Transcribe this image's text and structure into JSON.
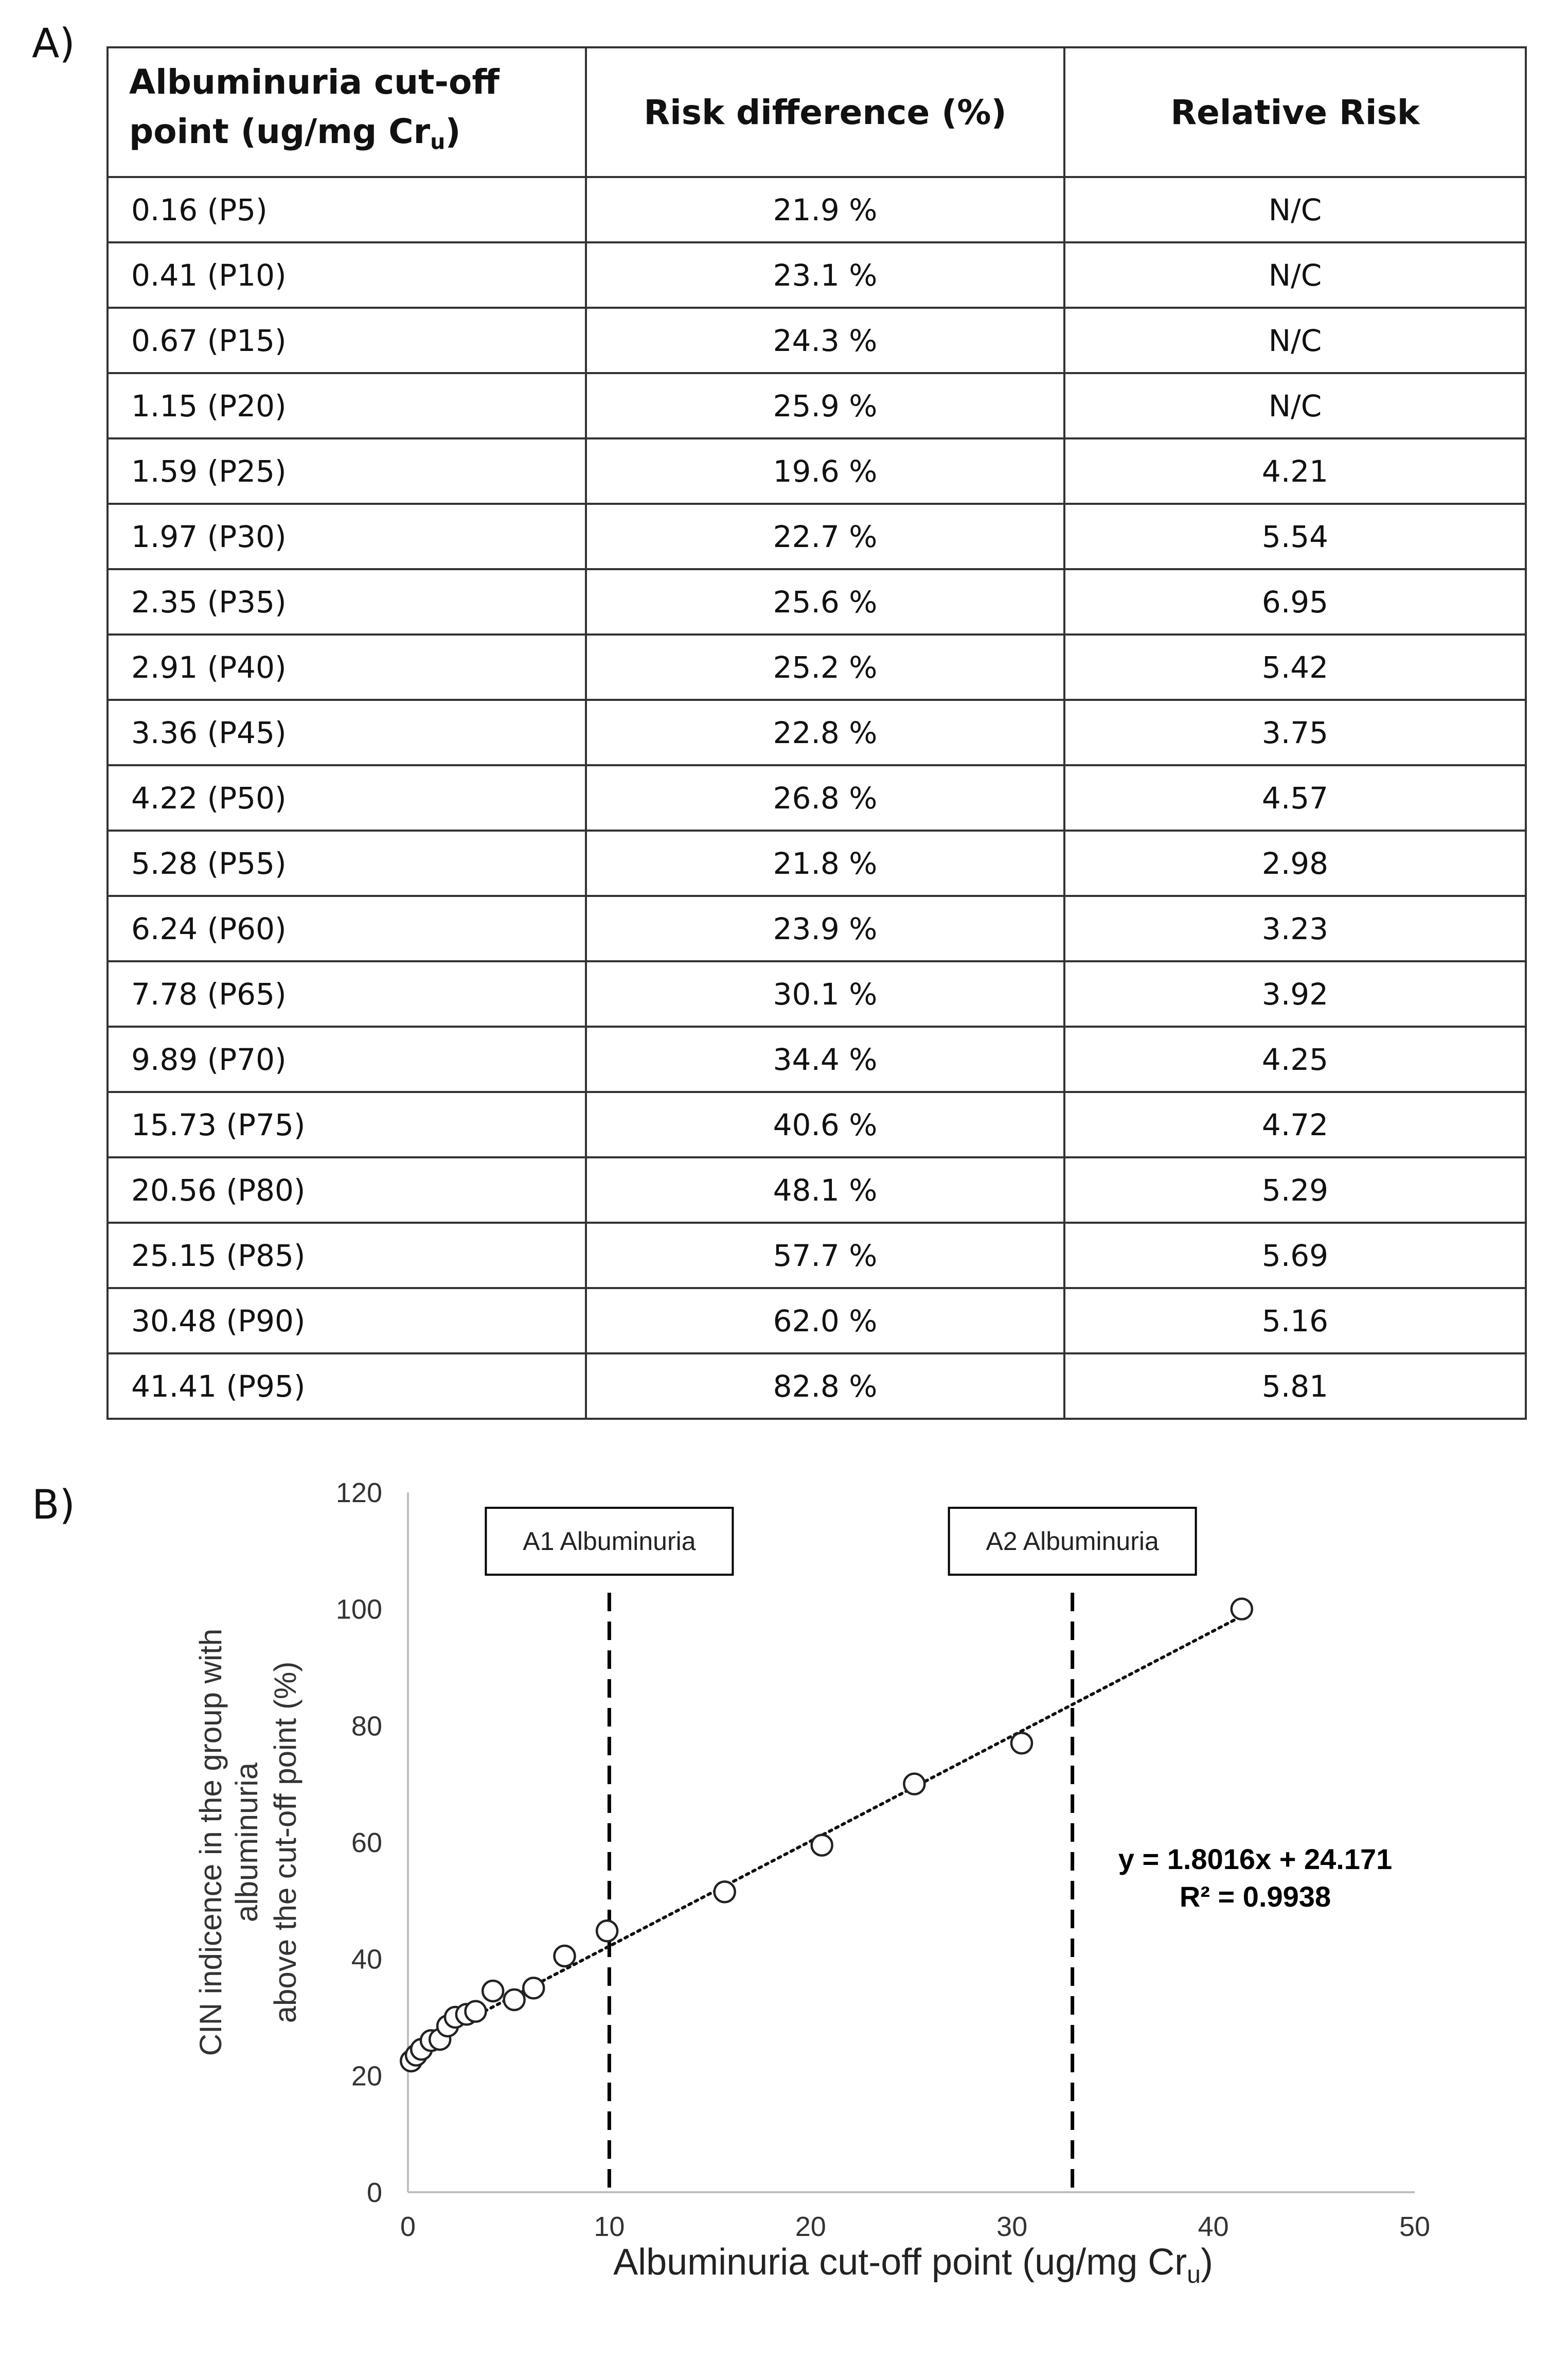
{
  "panel_a": {
    "label": "A)",
    "headers": {
      "col1_line1": "Albuminuria cut-off",
      "col1_line2": "point (ug/mg Cr",
      "col1_sub": "u",
      "col1_close": ")",
      "col2": "Risk difference (%)",
      "col3": "Relative Risk"
    },
    "rows": [
      [
        "0.16 (P5)",
        "21.9 %",
        "N/C"
      ],
      [
        "0.41 (P10)",
        "23.1 %",
        "N/C"
      ],
      [
        "0.67 (P15)",
        "24.3 %",
        "N/C"
      ],
      [
        "1.15 (P20)",
        "25.9 %",
        "N/C"
      ],
      [
        "1.59 (P25)",
        "19.6 %",
        "4.21"
      ],
      [
        "1.97 (P30)",
        "22.7 %",
        "5.54"
      ],
      [
        "2.35 (P35)",
        "25.6 %",
        "6.95"
      ],
      [
        "2.91 (P40)",
        "25.2 %",
        "5.42"
      ],
      [
        "3.36 (P45)",
        "22.8 %",
        "3.75"
      ],
      [
        "4.22 (P50)",
        "26.8 %",
        "4.57"
      ],
      [
        "5.28 (P55)",
        "21.8 %",
        "2.98"
      ],
      [
        "6.24 (P60)",
        "23.9 %",
        "3.23"
      ],
      [
        "7.78 (P65)",
        "30.1 %",
        "3.92"
      ],
      [
        "9.89 (P70)",
        "34.4 %",
        "4.25"
      ],
      [
        "15.73 (P75)",
        "40.6 %",
        "4.72"
      ],
      [
        "20.56 (P80)",
        "48.1 %",
        "5.29"
      ],
      [
        "25.15 (P85)",
        "57.7 %",
        "5.69"
      ],
      [
        "30.48 (P90)",
        "62.0 %",
        "5.16"
      ],
      [
        "41.41 (P95)",
        "82.8 %",
        "5.81"
      ]
    ]
  },
  "panel_b": {
    "label": "B)"
  },
  "chart_data": {
    "type": "scatter",
    "title": "",
    "xlabel": "Albuminuria cut-off point (ug/mg Cr",
    "xlabel_sub": "u",
    "xlabel_close": ")",
    "ylabel_lines": [
      "CIN indicence in the group with",
      "albuminuria",
      "above the cut-off point (%)"
    ],
    "xlim": [
      0,
      50
    ],
    "ylim": [
      0,
      120
    ],
    "xticks": [
      0,
      10,
      20,
      30,
      40,
      50
    ],
    "yticks": [
      0,
      20,
      40,
      60,
      80,
      100,
      120
    ],
    "series": [
      {
        "name": "CIN incidence",
        "x": [
          0.16,
          0.41,
          0.67,
          1.15,
          1.59,
          1.97,
          2.35,
          2.91,
          3.36,
          4.22,
          5.28,
          6.24,
          7.78,
          9.89,
          15.73,
          20.56,
          25.15,
          30.48,
          41.41
        ],
        "y": [
          22.5,
          23.5,
          24.5,
          26.0,
          26.2,
          28.5,
          30.0,
          30.5,
          31.0,
          34.5,
          33.0,
          35.0,
          40.5,
          44.8,
          51.5,
          59.5,
          70.0,
          77.0,
          100.0
        ]
      }
    ],
    "trendline": {
      "slope": 1.8016,
      "intercept": 24.171,
      "equation": "y = 1.8016x + 24.171",
      "r2_label": "R² = 0.9938"
    },
    "reference_lines": [
      {
        "x": 10,
        "label": "A1 Albuminuria"
      },
      {
        "x": 33,
        "label": "A2 Albuminuria"
      }
    ]
  }
}
